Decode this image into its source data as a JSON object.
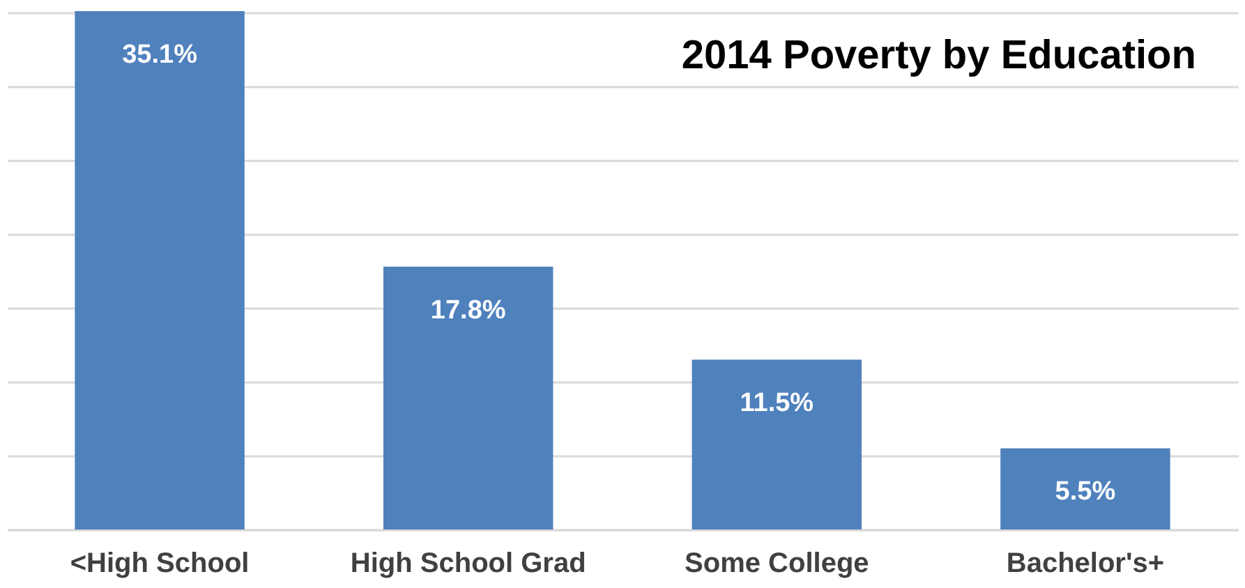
{
  "chart_data": {
    "type": "bar",
    "title": "2014 Poverty by Education",
    "categories": [
      "<High School",
      "High School Grad",
      "Some College",
      "Bachelor's+"
    ],
    "values": [
      35.1,
      17.8,
      11.5,
      5.5
    ],
    "value_labels": [
      "35.1%",
      "17.8%",
      "11.5%",
      "5.5%"
    ],
    "color": "#4f81bd",
    "yticks": [
      {
        "value": 0,
        "label": null
      },
      {
        "value": 5,
        "label": null
      },
      {
        "value": 10,
        "label": null
      },
      {
        "value": 15,
        "label": null
      },
      {
        "value": 20,
        "label": null
      },
      {
        "value": 25,
        "label": null
      },
      {
        "value": 30,
        "label": null
      },
      {
        "value": 35,
        "label": null
      }
    ],
    "grid": "y",
    "tick_labels": "x"
  }
}
